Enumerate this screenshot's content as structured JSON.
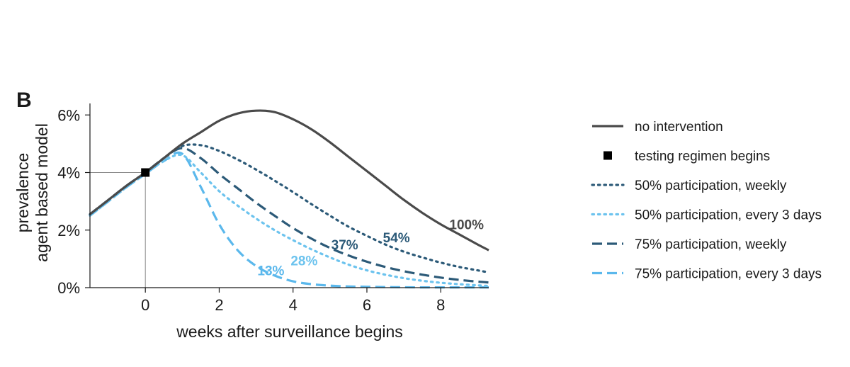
{
  "chart_data": {
    "type": "line",
    "panel_label": "B",
    "xlabel": "weeks after surveillance begins",
    "ylabel_lines": [
      "prevalence",
      "agent based model"
    ],
    "xlim": [
      -1.5,
      9.3
    ],
    "ylim": [
      0,
      6.4
    ],
    "x_ticks": [
      0,
      2,
      4,
      6,
      8
    ],
    "x_tick_labels": [
      "0",
      "2",
      "4",
      "6",
      "8"
    ],
    "y_ticks": [
      0,
      2,
      4,
      6
    ],
    "y_tick_labels": [
      "0%",
      "2%",
      "4%",
      "6%"
    ],
    "grid": false,
    "legend_position": "right",
    "marker": {
      "label": "testing regimen begins",
      "x": 0,
      "y": 4.0,
      "color": "#000000"
    },
    "series": [
      {
        "name": "no intervention",
        "color": "#4a4a4a",
        "style": "solid",
        "annotation": "100%",
        "annotation_at": [
          8.7,
          2.2
        ],
        "x": [
          -1.5,
          -1,
          -0.5,
          0,
          0.5,
          1,
          1.5,
          2,
          2.5,
          3,
          3.5,
          4,
          4.5,
          5,
          5.5,
          6,
          6.5,
          7,
          7.5,
          8,
          8.5,
          9,
          9.3
        ],
        "y": [
          2.55,
          3.05,
          3.55,
          4.0,
          4.5,
          5.0,
          5.4,
          5.8,
          6.05,
          6.15,
          6.1,
          5.85,
          5.5,
          5.05,
          4.55,
          4.05,
          3.55,
          3.05,
          2.6,
          2.2,
          1.85,
          1.5,
          1.3
        ]
      },
      {
        "name": "50% participation, weekly",
        "color": "#2c5a78",
        "style": "dotted",
        "annotation": "54%",
        "annotation_at": [
          6.8,
          1.75
        ],
        "x": [
          -1.5,
          -1,
          -0.5,
          0,
          0.5,
          1,
          1.5,
          2,
          2.5,
          3,
          3.5,
          4,
          4.5,
          5,
          5.5,
          6,
          6.5,
          7,
          7.5,
          8,
          8.5,
          9,
          9.3
        ],
        "y": [
          2.55,
          3.05,
          3.55,
          4.0,
          4.5,
          4.92,
          4.95,
          4.75,
          4.45,
          4.1,
          3.72,
          3.32,
          2.9,
          2.5,
          2.12,
          1.8,
          1.5,
          1.25,
          1.05,
          0.87,
          0.72,
          0.6,
          0.53
        ]
      },
      {
        "name": "50% participation, every 3 days",
        "color": "#6cc3ee",
        "style": "dotted",
        "annotation": "28%",
        "annotation_at": [
          4.3,
          0.95
        ],
        "x": [
          -1.5,
          -1,
          -0.5,
          0,
          0.5,
          1,
          1.5,
          2,
          2.5,
          3,
          3.5,
          4,
          4.5,
          5,
          5.5,
          6,
          6.5,
          7,
          7.5,
          8,
          8.5,
          9,
          9.3
        ],
        "y": [
          2.5,
          3.0,
          3.5,
          3.95,
          4.4,
          4.6,
          4.0,
          3.35,
          2.85,
          2.4,
          2.0,
          1.65,
          1.33,
          1.05,
          0.8,
          0.6,
          0.45,
          0.33,
          0.24,
          0.17,
          0.12,
          0.08,
          0.06
        ]
      },
      {
        "name": "75% participation, weekly",
        "color": "#2c5a78",
        "style": "dashed",
        "annotation": "37%",
        "annotation_at": [
          5.4,
          1.5
        ],
        "x": [
          -1.5,
          -1,
          -0.5,
          0,
          0.5,
          1,
          1.5,
          2,
          2.5,
          3,
          3.5,
          4,
          4.5,
          5,
          5.5,
          6,
          6.5,
          7,
          7.5,
          8,
          8.5,
          9,
          9.3
        ],
        "y": [
          2.55,
          3.05,
          3.55,
          4.0,
          4.5,
          4.85,
          4.5,
          3.95,
          3.45,
          2.95,
          2.5,
          2.07,
          1.7,
          1.38,
          1.12,
          0.9,
          0.72,
          0.57,
          0.45,
          0.35,
          0.27,
          0.21,
          0.18
        ]
      },
      {
        "name": "75% participation, every 3 days",
        "color": "#5bb8ec",
        "style": "dashed",
        "annotation": "13%",
        "annotation_at": [
          3.4,
          0.6
        ],
        "x": [
          -1.5,
          -1,
          -0.5,
          0,
          0.5,
          1,
          1.5,
          2,
          2.5,
          3,
          3.5,
          4,
          4.5,
          5,
          5.5,
          6,
          6.5,
          7,
          7.5,
          8,
          8.5,
          9,
          9.3
        ],
        "y": [
          2.5,
          3.0,
          3.5,
          3.95,
          4.4,
          4.65,
          3.5,
          2.2,
          1.3,
          0.75,
          0.42,
          0.22,
          0.12,
          0.07,
          0.04,
          0.03,
          0.02,
          0.015,
          0.01,
          0.01,
          0.01,
          0.01,
          0.01
        ]
      }
    ],
    "legend_order": [
      {
        "kind": "series",
        "index": 0
      },
      {
        "kind": "marker"
      },
      {
        "kind": "series",
        "index": 1
      },
      {
        "kind": "series",
        "index": 2
      },
      {
        "kind": "series",
        "index": 3
      },
      {
        "kind": "series",
        "index": 4
      }
    ]
  }
}
